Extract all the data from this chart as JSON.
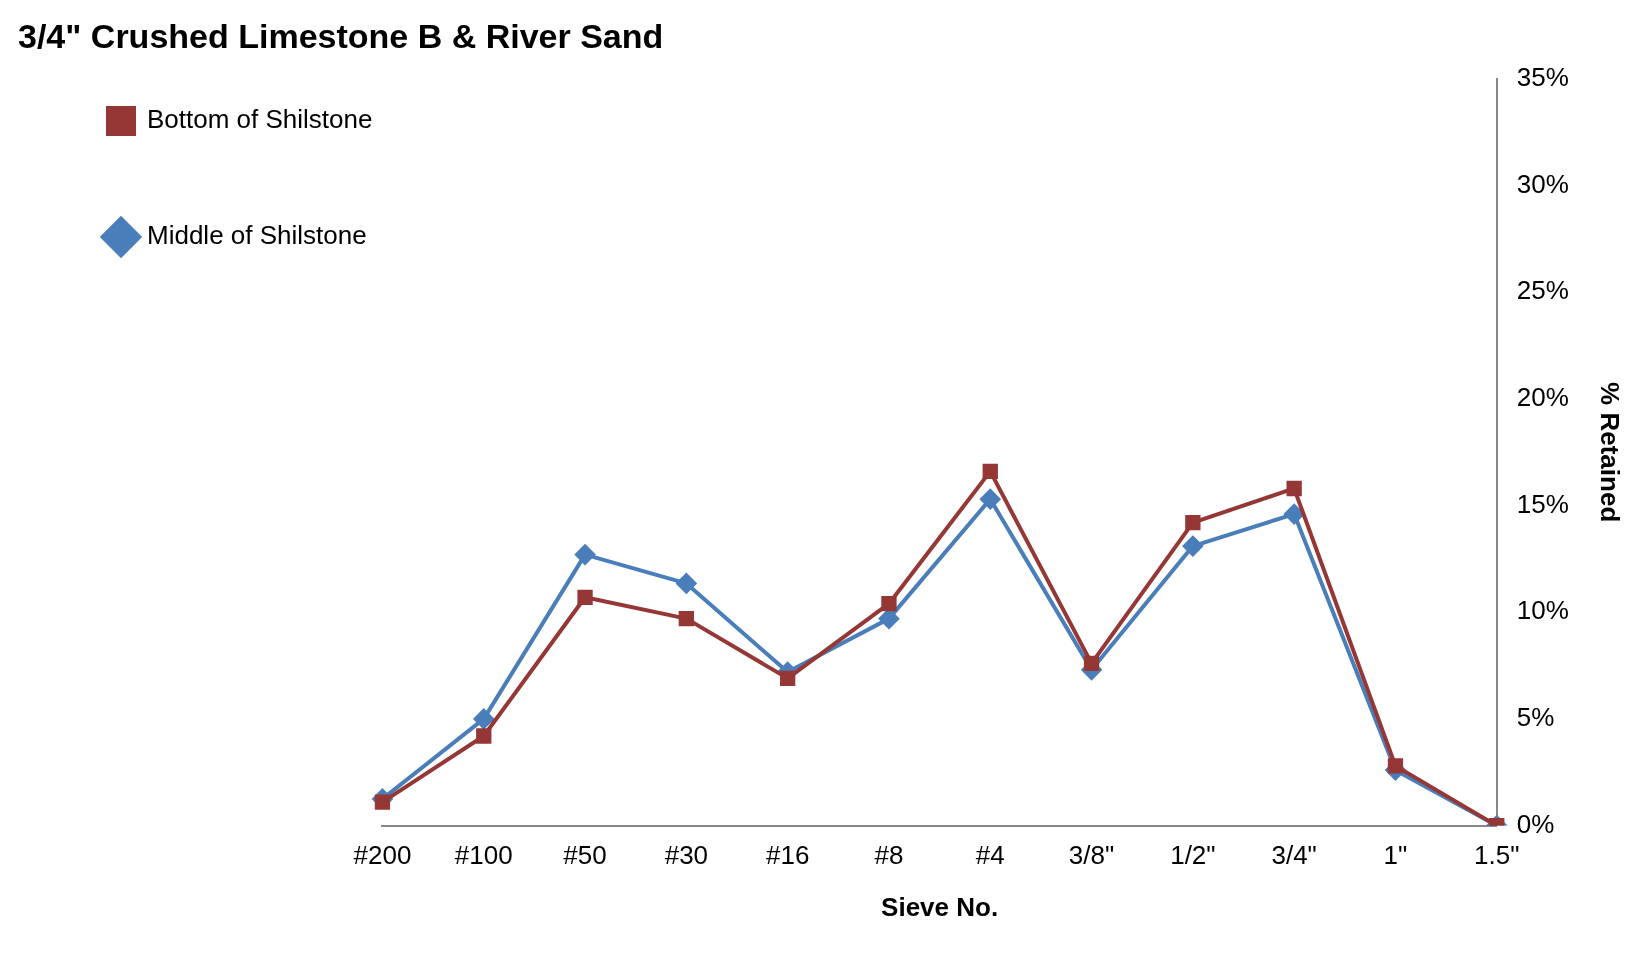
{
  "chart_data": {
    "type": "line",
    "title": "3/4\" Crushed Limestone B & River Sand",
    "xlabel": "Sieve No.",
    "ylabel": "% Retained",
    "categories": [
      "#200",
      "#100",
      "#50",
      "#30",
      "#16",
      "#8",
      "#4",
      "3/8\"",
      "1/2\"",
      "3/4\"",
      "1\"",
      "1.5\""
    ],
    "series": [
      {
        "name": "Middle of Shilstone",
        "color": "#4a7ebb",
        "marker": "diamond",
        "values": [
          1.25,
          5.0,
          12.7,
          11.35,
          7.2,
          9.7,
          15.3,
          7.3,
          13.1,
          14.6,
          2.6,
          0
        ]
      },
      {
        "name": "Bottom of Shilstone",
        "color": "#953735",
        "marker": "square",
        "values": [
          1.1,
          4.2,
          10.7,
          9.7,
          6.9,
          10.4,
          16.6,
          7.6,
          14.2,
          15.8,
          2.8,
          0
        ]
      }
    ],
    "ylim": [
      0,
      35
    ],
    "yticks": [
      {
        "value": 0,
        "label": "0%"
      },
      {
        "value": 5,
        "label": "5%"
      },
      {
        "value": 10,
        "label": "10%"
      },
      {
        "value": 15,
        "label": "15%"
      },
      {
        "value": 20,
        "label": "20%"
      },
      {
        "value": 25,
        "label": "25%"
      },
      {
        "value": 30,
        "label": "30%"
      },
      {
        "value": 35,
        "label": "35%"
      }
    ],
    "grid": false,
    "legend": "top left"
  }
}
